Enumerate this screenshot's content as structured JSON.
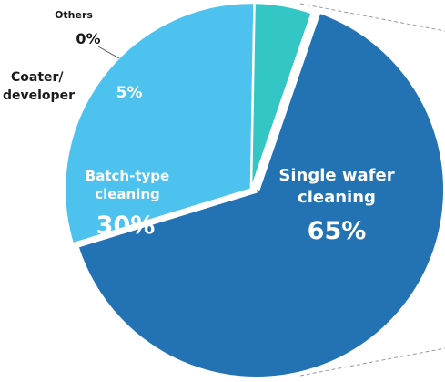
{
  "chart_data": {
    "type": "pie",
    "categories": [
      "Single wafer cleaning",
      "Batch-type cleaning",
      "Coater/ developer",
      "Others"
    ],
    "values": [
      65,
      30,
      5,
      0
    ],
    "colors": [
      "#2272b4",
      "#4ec2ef",
      "#33c6c4",
      "#33c6c4"
    ],
    "exploded": [
      "Single wafer cleaning"
    ],
    "labels": {
      "single": {
        "line1": "Single wafer",
        "line2": "cleaning",
        "pct": "65%"
      },
      "batch": {
        "line1": "Batch-type",
        "line2": "cleaning",
        "pct": "30%"
      },
      "coater": {
        "line1": "Coater/",
        "line2": "developer",
        "pct": "5%"
      },
      "others": {
        "name": "Others",
        "pct": "0%"
      }
    }
  }
}
